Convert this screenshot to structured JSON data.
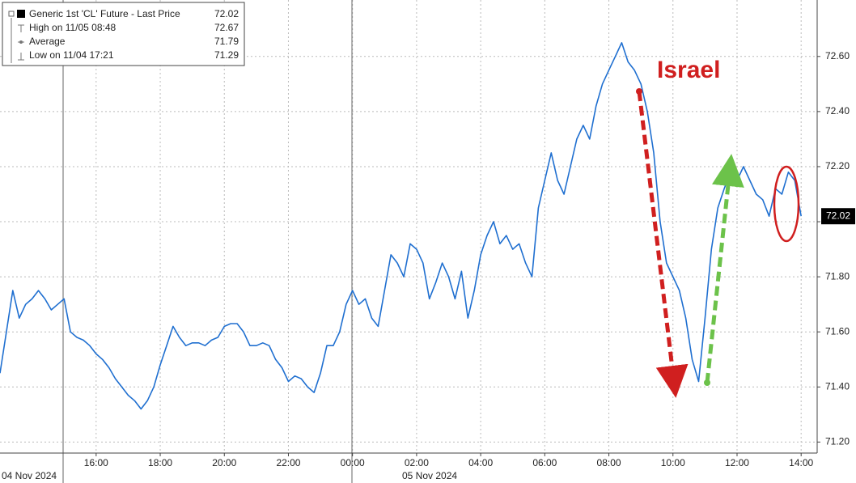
{
  "chart_data": {
    "type": "line",
    "series": [
      {
        "name": "Generic 1st 'CL' Future - Last Price",
        "color": "#1f6fd0",
        "values": [
          71.45,
          71.6,
          71.75,
          71.65,
          71.7,
          71.72,
          71.75,
          71.72,
          71.68,
          71.7,
          71.72,
          71.6,
          71.58,
          71.57,
          71.55,
          71.52,
          71.5,
          71.47,
          71.43,
          71.4,
          71.37,
          71.35,
          71.32,
          71.35,
          71.4,
          71.48,
          71.55,
          71.62,
          71.58,
          71.55,
          71.56,
          71.56,
          71.55,
          71.57,
          71.58,
          71.62,
          71.63,
          71.63,
          71.6,
          71.55,
          71.55,
          71.56,
          71.55,
          71.5,
          71.47,
          71.42,
          71.44,
          71.43,
          71.4,
          71.38,
          71.45,
          71.55,
          71.55,
          71.6,
          71.7,
          71.75,
          71.7,
          71.72,
          71.65,
          71.62,
          71.75,
          71.88,
          71.85,
          71.8,
          71.92,
          71.9,
          71.85,
          71.72,
          71.78,
          71.85,
          71.8,
          71.72,
          71.82,
          71.65,
          71.75,
          71.88,
          71.95,
          72.0,
          71.92,
          71.95,
          71.9,
          71.92,
          71.85,
          71.8,
          72.05,
          72.15,
          72.25,
          72.15,
          72.1,
          72.2,
          72.3,
          72.35,
          72.3,
          72.42,
          72.5,
          72.55,
          72.6,
          72.65,
          72.58,
          72.55,
          72.5,
          72.4,
          72.25,
          72.0,
          71.85,
          71.8,
          71.75,
          71.65,
          71.5,
          71.42,
          71.65,
          71.9,
          72.05,
          72.12,
          72.18,
          72.15,
          72.2,
          72.15,
          72.1,
          72.08,
          72.02,
          72.12,
          72.1,
          72.18,
          72.15,
          72.02
        ]
      }
    ],
    "x": [
      13.0,
      13.2,
      13.4,
      13.6,
      13.8,
      14.0,
      14.2,
      14.4,
      14.6,
      14.8,
      15.0,
      15.2,
      15.4,
      15.6,
      15.8,
      16.0,
      16.2,
      16.4,
      16.6,
      16.8,
      17.0,
      17.2,
      17.4,
      17.6,
      17.8,
      18.0,
      18.2,
      18.4,
      18.6,
      18.8,
      19.0,
      19.2,
      19.4,
      19.6,
      19.8,
      20.0,
      20.2,
      20.4,
      20.6,
      20.8,
      21.0,
      21.2,
      21.4,
      21.6,
      21.8,
      22.0,
      22.2,
      22.4,
      22.6,
      22.8,
      23.0,
      23.2,
      23.4,
      23.6,
      23.8,
      24.0,
      24.2,
      24.4,
      24.6,
      24.8,
      25.0,
      25.2,
      25.4,
      25.6,
      25.8,
      26.0,
      26.2,
      26.4,
      26.6,
      26.8,
      27.0,
      27.2,
      27.4,
      27.6,
      27.8,
      28.0,
      28.2,
      28.4,
      28.6,
      28.8,
      29.0,
      29.2,
      29.4,
      29.6,
      29.8,
      30.0,
      30.2,
      30.4,
      30.6,
      30.8,
      31.0,
      31.2,
      31.4,
      31.6,
      31.8,
      32.0,
      32.2,
      32.4,
      32.6,
      32.8,
      33.0,
      33.2,
      33.4,
      33.6,
      33.8,
      34.0,
      34.2,
      34.4,
      34.6,
      34.8,
      35.0,
      35.2,
      35.4,
      35.6,
      35.8,
      36.0,
      36.2,
      36.4,
      36.6,
      36.8,
      37.0,
      37.2,
      37.4,
      37.6,
      37.8,
      38.0
    ],
    "last_value": 72.02,
    "stats": [
      {
        "label": "High on 11/05 08:48",
        "value": 72.67
      },
      {
        "label": "Average",
        "value": 71.79
      },
      {
        "label": "Low on 11/04 17:21",
        "value": 71.29
      }
    ],
    "xlim": [
      13,
      38.5
    ],
    "xticks": [
      {
        "value": 16,
        "label": "16:00"
      },
      {
        "value": 18,
        "label": "18:00"
      },
      {
        "value": 20,
        "label": "20:00"
      },
      {
        "value": 22,
        "label": "22:00"
      },
      {
        "value": 24,
        "label": "00:00"
      },
      {
        "value": 26,
        "label": "02:00"
      },
      {
        "value": 28,
        "label": "04:00"
      },
      {
        "value": 30,
        "label": "06:00"
      },
      {
        "value": 32,
        "label": "08:00"
      },
      {
        "value": 34,
        "label": "10:00"
      },
      {
        "value": 36,
        "label": "12:00"
      },
      {
        "value": 38,
        "label": "14:00"
      }
    ],
    "date_labels": [
      "04 Nov 2024",
      "05 Nov 2024"
    ],
    "ylim": [
      71.16,
      72.805
    ],
    "yticks": [
      {
        "value": 71.2,
        "label": "71.20"
      },
      {
        "value": 71.4,
        "label": "71.40"
      },
      {
        "value": 71.6,
        "label": "71.60"
      },
      {
        "value": 71.8,
        "label": "71.80"
      },
      {
        "value": 72.0,
        "label": "72.00"
      },
      {
        "value": 72.2,
        "label": "72.20"
      },
      {
        "value": 72.4,
        "label": "72.40"
      },
      {
        "value": 72.6,
        "label": "72.60"
      }
    ],
    "annotation": "Israel",
    "grid": true
  }
}
